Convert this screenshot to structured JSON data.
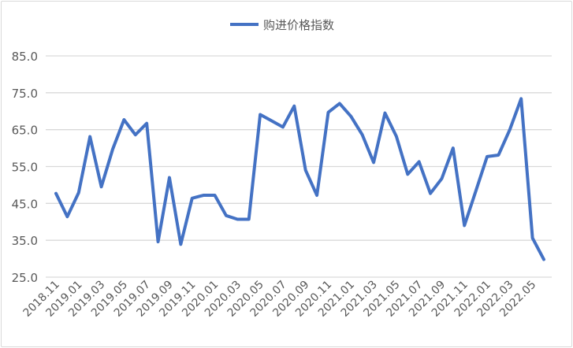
{
  "chart_data": {
    "type": "line",
    "title": "",
    "xlabel": "",
    "ylabel": "",
    "ylim": [
      25,
      85
    ],
    "yticks": [
      "25.0",
      "35.0",
      "45.0",
      "55.0",
      "65.0",
      "75.0",
      "85.0"
    ],
    "grid": true,
    "legend_position": "top",
    "line_color": "#4472C4",
    "x": [
      "2018.11",
      "2018.12",
      "2019.01",
      "2019.02",
      "2019.03",
      "2019.04",
      "2019.05",
      "2019.06",
      "2019.07",
      "2019.08",
      "2019.09",
      "2019.10",
      "2019.11",
      "2019.12",
      "2020.01",
      "2020.02",
      "2020.03",
      "2020.04",
      "2020.05",
      "2020.06",
      "2020.07",
      "2020.08",
      "2020.09",
      "2020.10",
      "2020.11",
      "2020.12",
      "2021.01",
      "2021.02",
      "2021.03",
      "2021.04",
      "2021.05",
      "2021.06",
      "2021.07",
      "2021.08",
      "2021.09",
      "2021.10",
      "2021.11",
      "2021.12",
      "2022.01",
      "2022.02",
      "2022.03",
      "2022.04",
      "2022.05",
      "2022.06"
    ],
    "xtick_labels": [
      "2018.11",
      "2019.01",
      "2019.03",
      "2019.05",
      "2019.07",
      "2019.09",
      "2019.11",
      "2020.01",
      "2020.03",
      "2020.05",
      "2020.07",
      "2020.09",
      "2020.11",
      "2021.01",
      "2021.03",
      "2021.05",
      "2021.07",
      "2021.09",
      "2021.11",
      "2022.01",
      "2022.03",
      "2022.05"
    ],
    "series": [
      {
        "name": "购进价格指数",
        "values": [
          47.7,
          41.4,
          47.9,
          63.1,
          49.5,
          59.7,
          67.7,
          63.6,
          66.7,
          34.6,
          52.0,
          33.9,
          46.4,
          47.2,
          47.2,
          41.7,
          40.7,
          40.7,
          69.1,
          67.4,
          65.7,
          71.4,
          54.0,
          47.2,
          69.7,
          72.1,
          68.6,
          63.6,
          56.1,
          69.5,
          63.2,
          52.9,
          56.3,
          47.7,
          51.7,
          60.0,
          39.0,
          48.3,
          57.7,
          58.1,
          65.0,
          73.4,
          35.6,
          29.8
        ]
      }
    ]
  }
}
